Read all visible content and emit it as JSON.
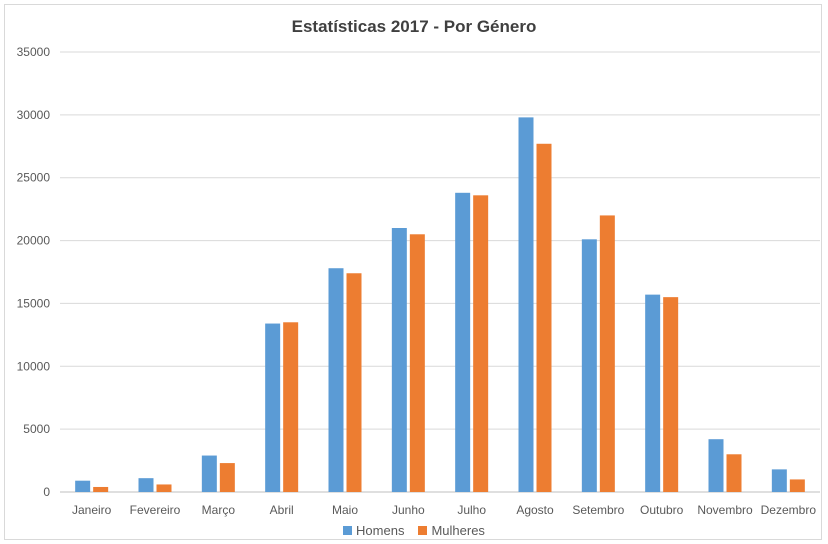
{
  "chart_data": {
    "type": "bar",
    "title": "Estatísticas 2017 - Por Género",
    "xlabel": "",
    "ylabel": "",
    "ylim": [
      0,
      35000
    ],
    "yticks": [
      0,
      5000,
      10000,
      15000,
      20000,
      25000,
      30000,
      35000
    ],
    "grid": true,
    "legend_position": "bottom",
    "categories": [
      "Janeiro",
      "Fevereiro",
      "Março",
      "Abril",
      "Maio",
      "Junho",
      "Julho",
      "Agosto",
      "Setembro",
      "Outubro",
      "Novembro",
      "Dezembro"
    ],
    "series": [
      {
        "name": "Homens",
        "color": "#5b9bd5",
        "values": [
          900,
          1100,
          2900,
          13400,
          17800,
          21000,
          23800,
          29800,
          20100,
          15700,
          4200,
          1800
        ]
      },
      {
        "name": "Mulheres",
        "color": "#ed7d31",
        "values": [
          400,
          600,
          2300,
          13500,
          17400,
          20500,
          23600,
          27700,
          22000,
          15500,
          3000,
          1000
        ]
      }
    ]
  }
}
